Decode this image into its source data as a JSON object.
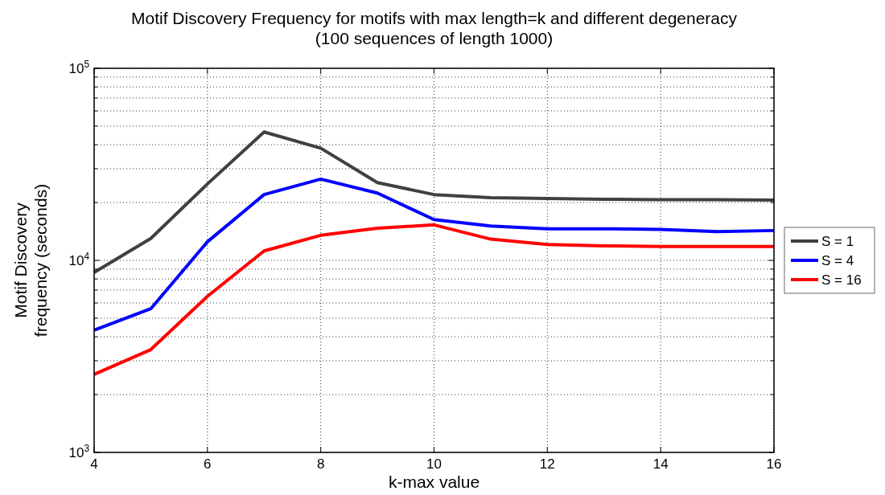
{
  "chart_data": {
    "type": "line",
    "title": "Motif Discovery Frequency for motifs with max length=k and different degeneracy",
    "subtitle": "(100 sequences of length 1000)",
    "xlabel": "k-max value",
    "ylabel": "Motif Discovery\nfrequency (seconds)",
    "x": [
      4,
      5,
      6,
      7,
      8,
      9,
      10,
      11,
      12,
      13,
      14,
      15,
      16
    ],
    "series": [
      {
        "name": "S = 1",
        "color": "#404040",
        "values": [
          8650,
          13000,
          25000,
          46600,
          38400,
          25400,
          22000,
          21200,
          21000,
          20800,
          20700,
          20700,
          20600
        ]
      },
      {
        "name": "S = 4",
        "color": "#0000ff",
        "values": [
          4330,
          5600,
          12500,
          22000,
          26500,
          22400,
          16300,
          15100,
          14600,
          14600,
          14500,
          14100,
          14300
        ]
      },
      {
        "name": "S = 16",
        "color": "#ff0000",
        "values": [
          2550,
          3430,
          6500,
          11200,
          13500,
          14700,
          15300,
          12900,
          12100,
          11900,
          11800,
          11800,
          11800
        ]
      }
    ],
    "xlim": [
      4,
      16
    ],
    "xticks": [
      4,
      6,
      8,
      10,
      12,
      14,
      16
    ],
    "ylim": [
      1000,
      100000
    ],
    "yticks": [
      {
        "value": 1000,
        "label": "10$^{3}$"
      },
      {
        "value": 10000,
        "label": "10$^{4}$"
      },
      {
        "value": 100000,
        "label": "10$^{5}$"
      }
    ],
    "log": true,
    "grid": true,
    "legend": "right",
    "marker": "none",
    "line_style": "solid"
  }
}
